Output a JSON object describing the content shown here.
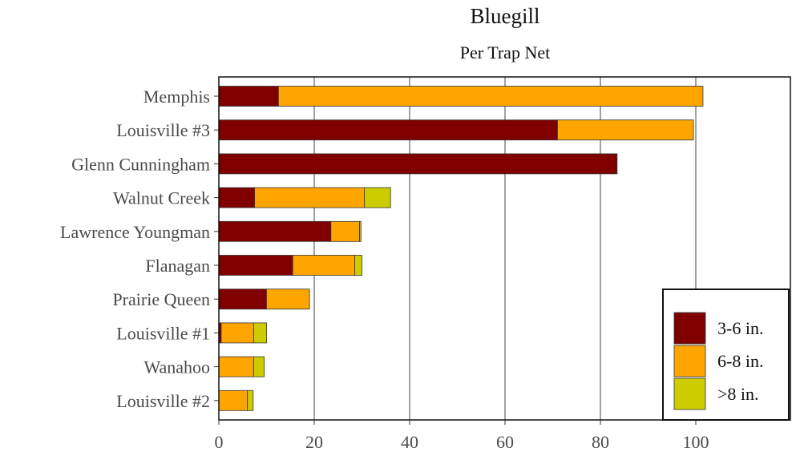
{
  "chart_data": {
    "type": "bar",
    "orientation": "horizontal",
    "stacked": true,
    "title": "Bluegill",
    "subtitle": "Per Trap Net",
    "categories": [
      "Memphis",
      "Louisville #3",
      "Glenn Cunningham",
      "Walnut Creek",
      "Lawrence Youngman",
      "Flanagan",
      "Prairie Queen",
      "Louisville #1",
      "Wanahoo",
      "Louisville #2"
    ],
    "series": [
      {
        "name": "3-6 in.",
        "color": "#800000",
        "values": [
          12.5,
          71,
          83.5,
          7.5,
          23.5,
          15.5,
          10,
          0.5,
          0,
          0
        ]
      },
      {
        "name": "6-8 in.",
        "color": "#FFA500",
        "values": [
          89,
          28.5,
          0,
          23,
          6,
          13,
          9,
          6.8,
          7.3,
          6
        ]
      },
      {
        "name": ">8 in.",
        "color": "#CCCC00",
        "values": [
          0,
          0,
          0,
          5.5,
          0.3,
          1.5,
          0,
          2.7,
          2.2,
          1.2
        ]
      }
    ],
    "xlim": [
      0,
      120
    ],
    "xticks": [
      0,
      20,
      40,
      60,
      80,
      100
    ],
    "grid": "vertical",
    "legend_position": "bottom-right"
  }
}
